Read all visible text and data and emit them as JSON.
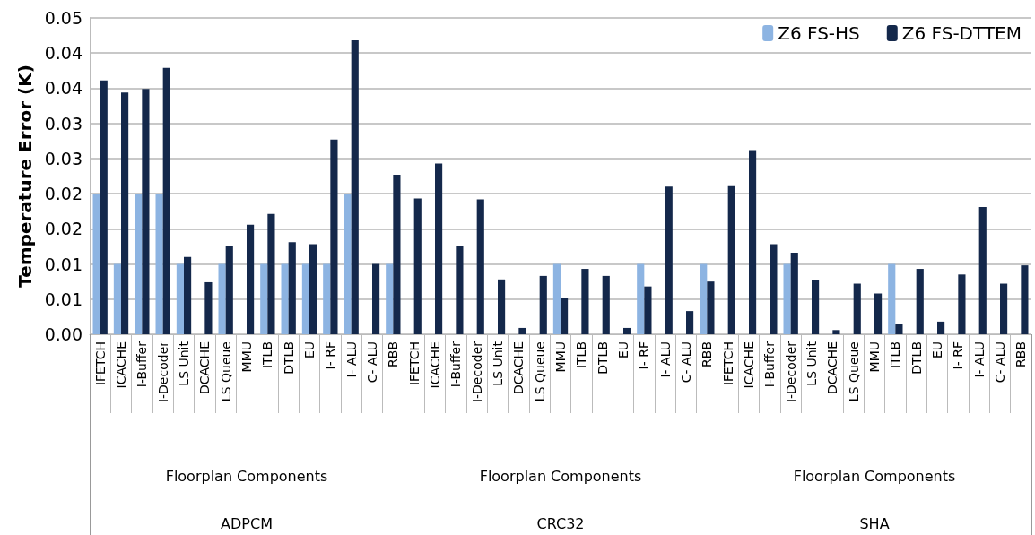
{
  "chart_data": {
    "type": "bar",
    "ylabel": "Temperature Error (K)",
    "categories": [
      "IFETCH",
      "ICACHE",
      "I-Buffer",
      "I-Decoder",
      "LS Unit",
      "DCACHE",
      "LS Queue",
      "MMU",
      "ITLB",
      "DTLB",
      "EU",
      "I- RF",
      "I- ALU",
      "C- ALU",
      "RBB",
      "IFETCH",
      "ICACHE",
      "I-Buffer",
      "I-Decoder",
      "LS Unit",
      "DCACHE",
      "LS Queue",
      "MMU",
      "ITLB",
      "DTLB",
      "EU",
      "I- RF",
      "I- ALU",
      "C- ALU",
      "RBB",
      "IFETCH",
      "ICACHE",
      "I-Buffer",
      "I-Decoder",
      "LS Unit",
      "DCACHE",
      "LS Queue",
      "MMU",
      "ITLB",
      "DTLB",
      "EU",
      "I- RF",
      "I- ALU",
      "C- ALU",
      "RBB"
    ],
    "series": [
      {
        "name": "Z6 FS-HS",
        "color": "#8db4e2",
        "values": [
          0.02,
          0.01,
          0.02,
          0.02,
          0.01,
          0,
          0.01,
          0,
          0.01,
          0.01,
          0.01,
          0.01,
          0.02,
          0,
          0.01,
          0,
          0,
          0,
          0,
          0,
          0,
          0,
          0.01,
          0,
          0,
          0,
          0.01,
          0,
          0,
          0.01,
          0,
          0,
          0,
          0.01,
          0,
          0,
          0,
          0,
          0.01,
          0,
          0,
          0,
          0,
          0,
          0
        ]
      },
      {
        "name": "Z6 FS-DTTEM",
        "color": "#14284b",
        "values": [
          0.0361,
          0.0344,
          0.0349,
          0.0379,
          0.011,
          0.0074,
          0.0125,
          0.0156,
          0.0171,
          0.0131,
          0.0128,
          0.0277,
          0.0418,
          0.01,
          0.0227,
          0.0193,
          0.0243,
          0.0125,
          0.0192,
          0.0078,
          0.0009,
          0.0083,
          0.0051,
          0.0093,
          0.0083,
          0.0009,
          0.0068,
          0.021,
          0.0033,
          0.0075,
          0.0212,
          0.0262,
          0.0128,
          0.0116,
          0.0077,
          0.0006,
          0.0072,
          0.0058,
          0.0014,
          0.0093,
          0.0018,
          0.0085,
          0.0181,
          0.0072,
          0.0098
        ]
      }
    ],
    "ylim": [
      0,
      0.045
    ],
    "yticks": [
      {
        "value": 0,
        "label": "0.00"
      },
      {
        "value": 0.005,
        "label": "0.01"
      },
      0.01,
      {
        "value": 0.015,
        "label": "0.02"
      },
      0.02,
      {
        "value": 0.025,
        "label": "0.03"
      },
      0.03,
      {
        "value": 0.035,
        "label": "0.04"
      },
      0.04,
      {
        "value": 0.045,
        "label": "0.05"
      }
    ],
    "grid": "y",
    "legend": "top right",
    "annotations": [
      "Floorplan Components",
      "ADPCM",
      "Floorplan Components",
      "CRC32",
      "Floorplan Components",
      "SHA"
    ]
  }
}
